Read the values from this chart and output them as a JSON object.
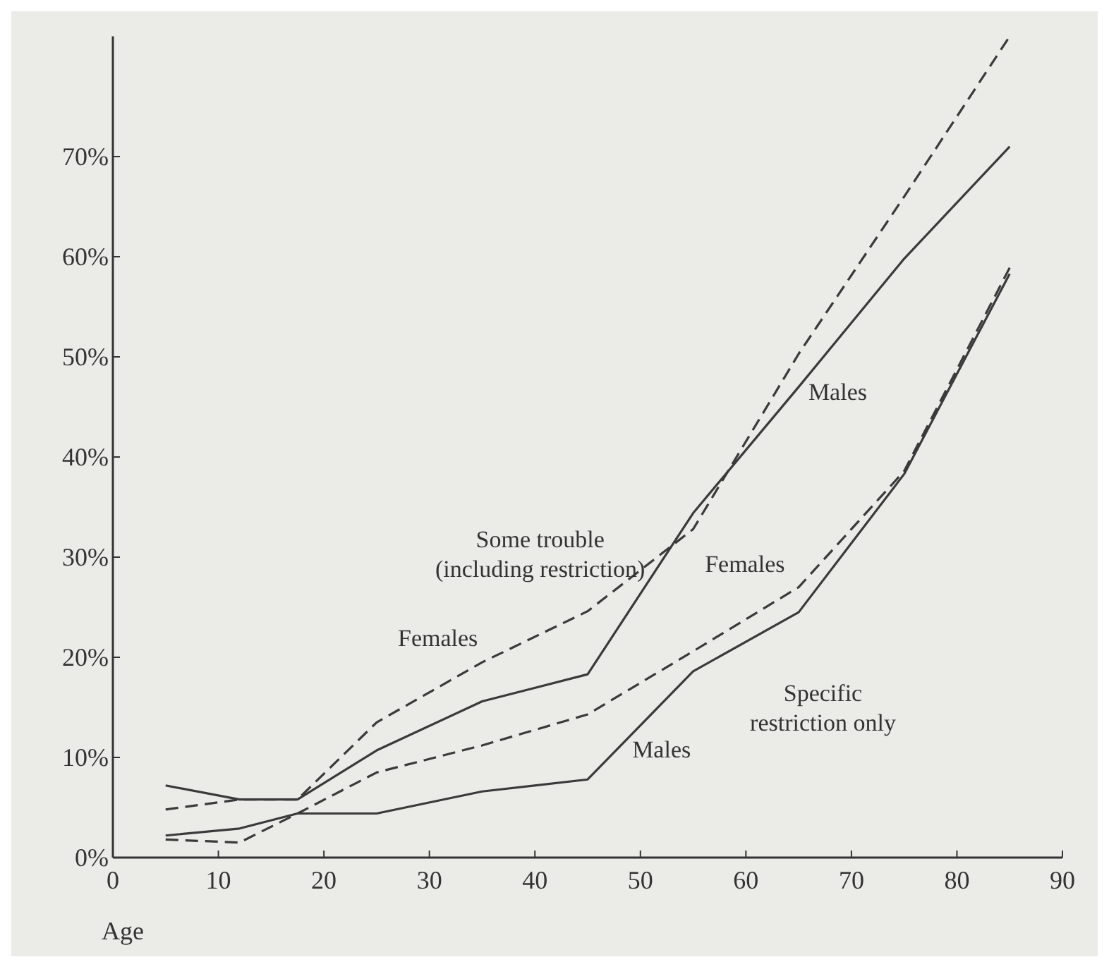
{
  "chart_data": {
    "type": "line",
    "xlabel": "Age",
    "x": [
      5,
      12,
      17.5,
      25,
      35,
      45,
      55,
      65,
      75,
      85
    ],
    "series": [
      {
        "name": "Females",
        "color": "#3a3a3a",
        "line_style": "dashed",
        "values": [
          4.8,
          5.8,
          5.8,
          13.5,
          19.5,
          24.6,
          32.8,
          50.3,
          66,
          82
        ]
      },
      {
        "name": "Males",
        "color": "#3a3a3a",
        "line_style": "solid",
        "values": [
          7.2,
          5.8,
          5.8,
          10.7,
          15.6,
          18.3,
          34.4,
          47,
          59.8,
          71
        ]
      },
      {
        "name": "Females",
        "color": "#3a3a3a",
        "line_style": "dashed",
        "values": [
          1.8,
          1.5,
          4.4,
          8.5,
          11.2,
          14.3,
          20.6,
          27,
          38.6,
          58.9
        ]
      },
      {
        "name": "Males",
        "color": "#3a3a3a",
        "line_style": "solid",
        "values": [
          2.2,
          2.9,
          4.4,
          4.4,
          6.6,
          7.8,
          18.6,
          24.5,
          38.3,
          58.3
        ]
      }
    ],
    "annotations": [
      "Some trouble (including restriction)",
      "Specific restriction only"
    ],
    "xlim": [
      0,
      90
    ],
    "xticks": [
      0,
      10,
      20,
      30,
      40,
      50,
      60,
      70,
      80,
      90
    ],
    "ylim": [
      0,
      82
    ],
    "yticks": [
      {
        "value": 0,
        "label": "0%"
      },
      {
        "value": 10,
        "label": "10%"
      },
      {
        "value": 20,
        "label": "20%"
      },
      {
        "value": 30,
        "label": "30%"
      },
      {
        "value": 40,
        "label": "40%"
      },
      {
        "value": 50,
        "label": "50%"
      },
      {
        "value": 60,
        "label": "60%"
      },
      {
        "value": 70,
        "label": "70%"
      }
    ]
  }
}
